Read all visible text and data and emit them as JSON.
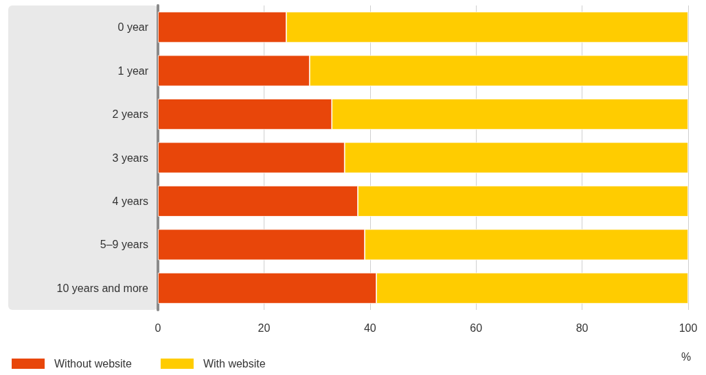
{
  "chart_data": {
    "type": "bar",
    "orientation": "horizontal",
    "stacked": true,
    "categories": [
      "0 year",
      "1 year",
      "2 years",
      "3 years",
      "4 years",
      "5–9 years",
      "10 years and more"
    ],
    "series": [
      {
        "name": "Without website",
        "color": "#e8460a",
        "values": [
          24.2,
          28.6,
          32.8,
          35.2,
          37.7,
          39.0,
          41.2
        ]
      },
      {
        "name": "With website",
        "color": "#ffcc00",
        "values": [
          75.8,
          71.4,
          67.2,
          64.8,
          62.3,
          61.0,
          58.8
        ]
      }
    ],
    "xlabel": "%",
    "xlim": [
      0,
      100
    ],
    "xticks": [
      0,
      20,
      40,
      60,
      80,
      100
    ],
    "grid": "x",
    "legend": "bottom left"
  }
}
